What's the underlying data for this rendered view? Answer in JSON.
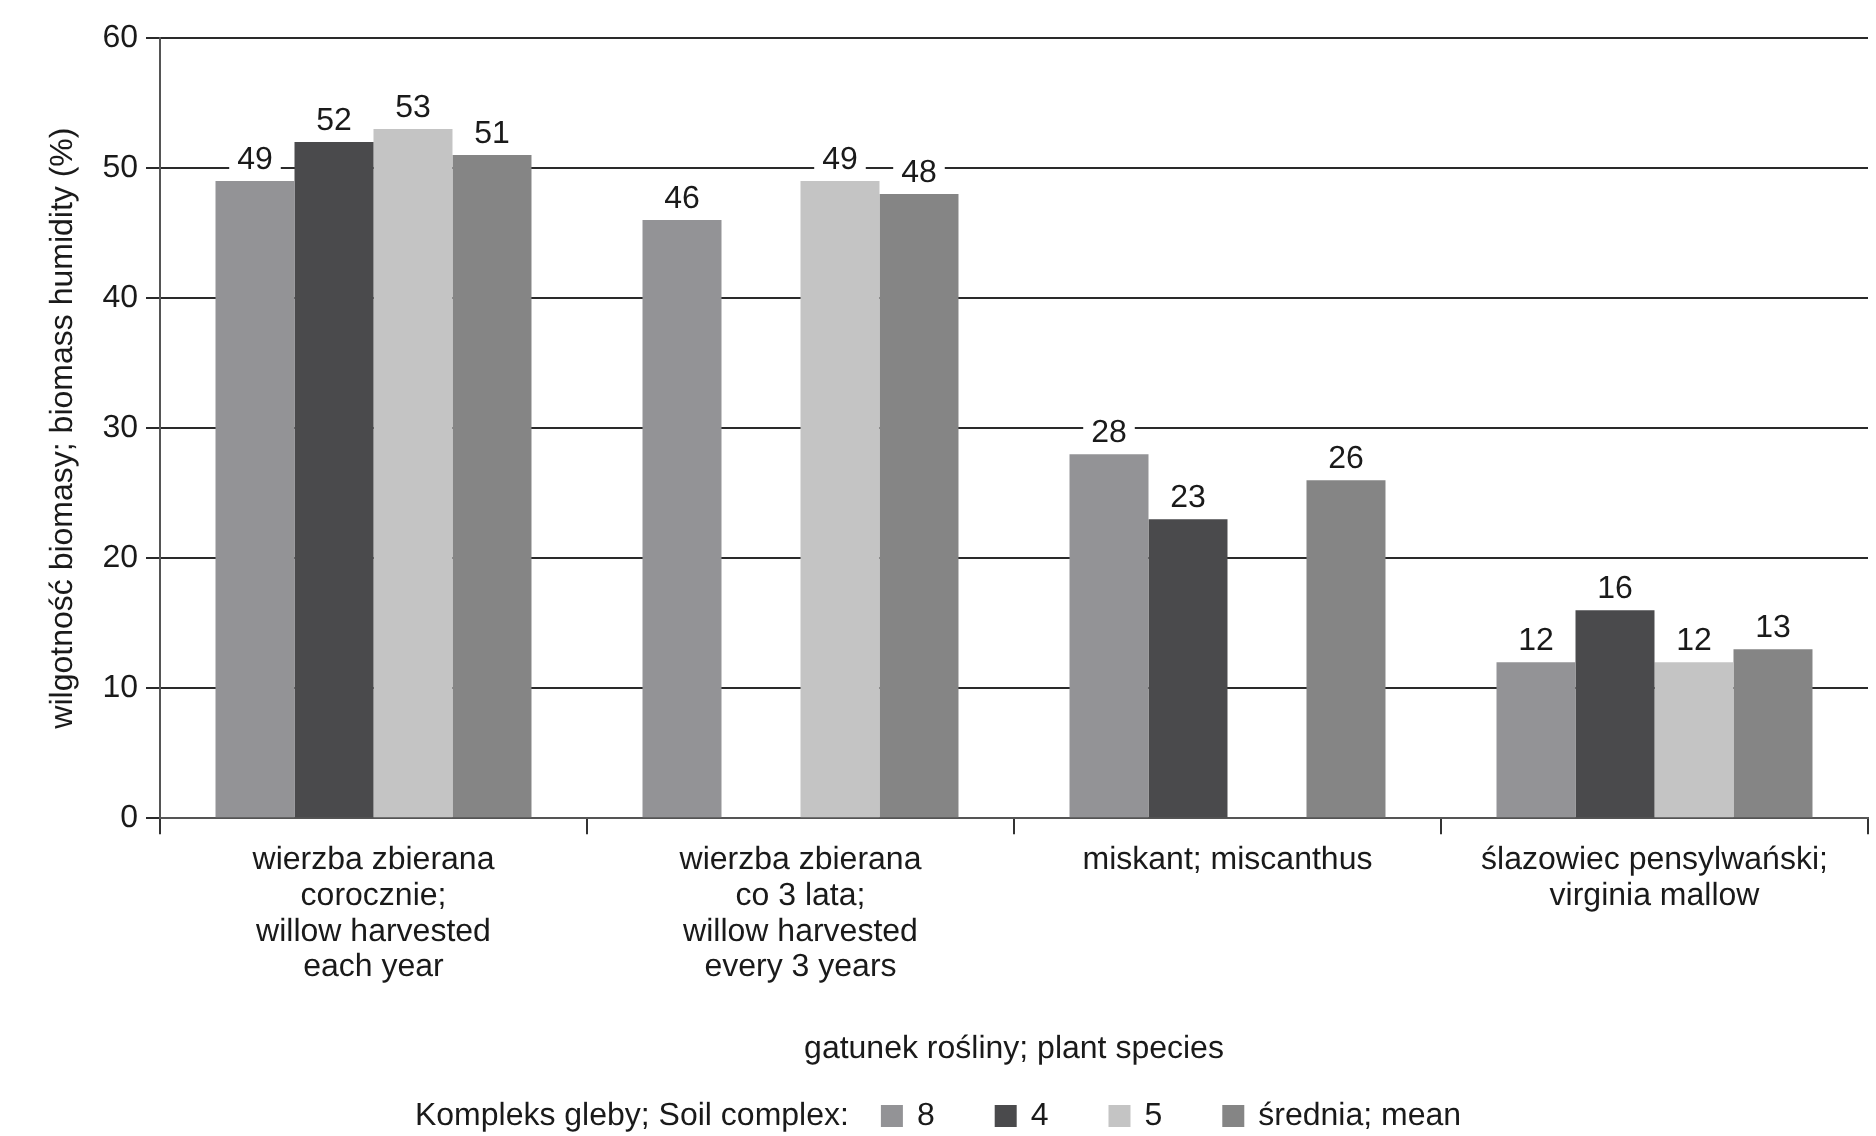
{
  "chart_data": {
    "type": "bar",
    "xlabel": "gatunek rośliny; plant species",
    "ylabel": "wilgotność biomasy; biomass humidity (%)",
    "legend_title": "Kompleks gleby; Soil complex:",
    "categories": [
      "wierzba zbierana corocznie; willow harvested each year",
      "wierzba zbierana co 3 lata; willow harvested every 3 years",
      "miskant; miscanthus",
      "ślazowiec pensylwański; virginia mallow"
    ],
    "series": [
      {
        "name": "8",
        "color": "#939396",
        "values": [
          49,
          46,
          28,
          12
        ]
      },
      {
        "name": "4",
        "color": "#4a4a4c",
        "values": [
          52,
          null,
          23,
          16
        ]
      },
      {
        "name": "5",
        "color": "#c4c4c4",
        "values": [
          53,
          49,
          null,
          12
        ]
      },
      {
        "name": "średnia; mean",
        "color": "#858585",
        "values": [
          51,
          48,
          26,
          13
        ]
      }
    ],
    "ylim": [
      0,
      60
    ],
    "yticks": [
      0,
      10,
      20,
      30,
      40,
      50,
      60
    ],
    "grid": "y",
    "legend": "bottom",
    "data_labels": true
  }
}
